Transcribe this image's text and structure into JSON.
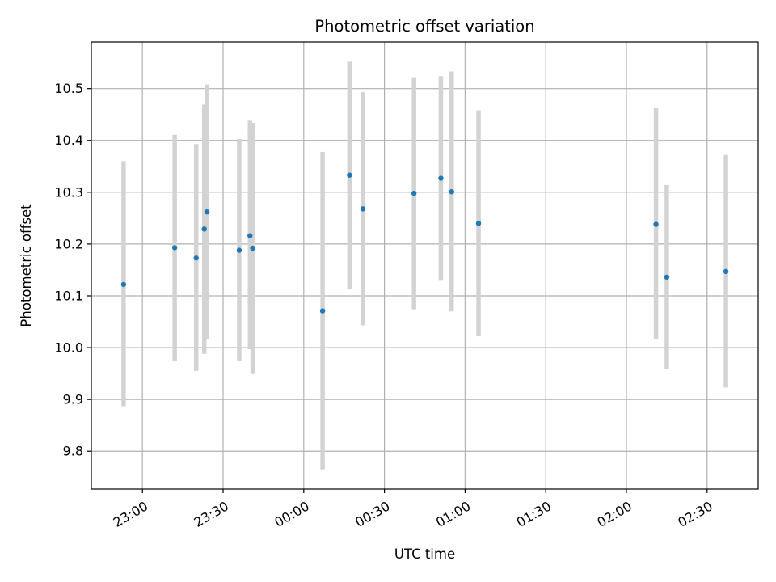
{
  "chart_data": {
    "type": "scatter",
    "title": "Photometric offset variation",
    "xlabel": "UTC time",
    "ylabel": "Photometric offset",
    "x_ticks": [
      "23:00",
      "23:30",
      "00:00",
      "00:30",
      "01:00",
      "01:30",
      "02:00",
      "02:30"
    ],
    "y_ticks": [
      "9.8",
      "9.9",
      "10.0",
      "10.1",
      "10.2",
      "10.3",
      "10.4",
      "10.5"
    ],
    "y_tick_values": [
      9.8,
      9.9,
      10.0,
      10.1,
      10.2,
      10.3,
      10.4,
      10.5
    ],
    "x_range": [
      "22:41",
      "02:49"
    ],
    "ylim": [
      9.727,
      10.59
    ],
    "grid": true,
    "points": [
      {
        "x": "22:53",
        "y": 10.122,
        "err_low": 9.887,
        "err_high": 10.36
      },
      {
        "x": "23:12",
        "y": 10.193,
        "err_low": 9.975,
        "err_high": 10.411
      },
      {
        "x": "23:20",
        "y": 10.173,
        "err_low": 9.955,
        "err_high": 10.393
      },
      {
        "x": "23:23",
        "y": 10.229,
        "err_low": 9.988,
        "err_high": 10.469
      },
      {
        "x": "23:24",
        "y": 10.262,
        "err_low": 10.016,
        "err_high": 10.508
      },
      {
        "x": "23:36",
        "y": 10.188,
        "err_low": 9.975,
        "err_high": 10.403
      },
      {
        "x": "23:40",
        "y": 10.216,
        "err_low": 9.997,
        "err_high": 10.438
      },
      {
        "x": "23:41",
        "y": 10.192,
        "err_low": 9.949,
        "err_high": 10.434
      },
      {
        "x": "00:07",
        "y": 10.071,
        "err_low": 9.765,
        "err_high": 10.378
      },
      {
        "x": "00:17",
        "y": 10.333,
        "err_low": 10.114,
        "err_high": 10.552
      },
      {
        "x": "00:22",
        "y": 10.268,
        "err_low": 10.043,
        "err_high": 10.493
      },
      {
        "x": "00:41",
        "y": 10.298,
        "err_low": 10.074,
        "err_high": 10.522
      },
      {
        "x": "00:51",
        "y": 10.327,
        "err_low": 10.129,
        "err_high": 10.524
      },
      {
        "x": "00:55",
        "y": 10.301,
        "err_low": 10.07,
        "err_high": 10.533
      },
      {
        "x": "01:05",
        "y": 10.24,
        "err_low": 10.022,
        "err_high": 10.458
      },
      {
        "x": "02:11",
        "y": 10.238,
        "err_low": 10.016,
        "err_high": 10.462
      },
      {
        "x": "02:15",
        "y": 10.136,
        "err_low": 9.958,
        "err_high": 10.314
      },
      {
        "x": "02:37",
        "y": 10.147,
        "err_low": 9.923,
        "err_high": 10.372
      }
    ],
    "colors": {
      "marker": "#1f77b4",
      "errorbar": "#d3d3d3",
      "grid": "#b0b0b0",
      "axes": "#000000"
    }
  }
}
